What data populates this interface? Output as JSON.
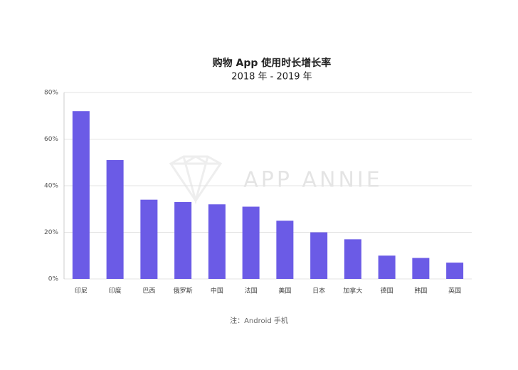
{
  "chart_data": {
    "type": "bar",
    "title": "购物 App 使用时长增长率",
    "subtitle": "2018 年 - 2019 年",
    "categories": [
      "印尼",
      "印度",
      "巴西",
      "俄罗斯",
      "中国",
      "法国",
      "美国",
      "日本",
      "加拿大",
      "德国",
      "韩国",
      "英国"
    ],
    "values": [
      72,
      51,
      34,
      33,
      32,
      31,
      25,
      20,
      17,
      10,
      9,
      7
    ],
    "color": "#6b5be6",
    "ylim": [
      0,
      80
    ],
    "yticks": [
      {
        "value": 0,
        "label": "0%"
      },
      {
        "value": 20,
        "label": "20%"
      },
      {
        "value": 40,
        "label": "40%"
      },
      {
        "value": 60,
        "label": "60%"
      },
      {
        "value": 80,
        "label": "80%"
      }
    ],
    "grid": true,
    "watermark": "APP ANNIE",
    "note": "注：Android 手机"
  }
}
